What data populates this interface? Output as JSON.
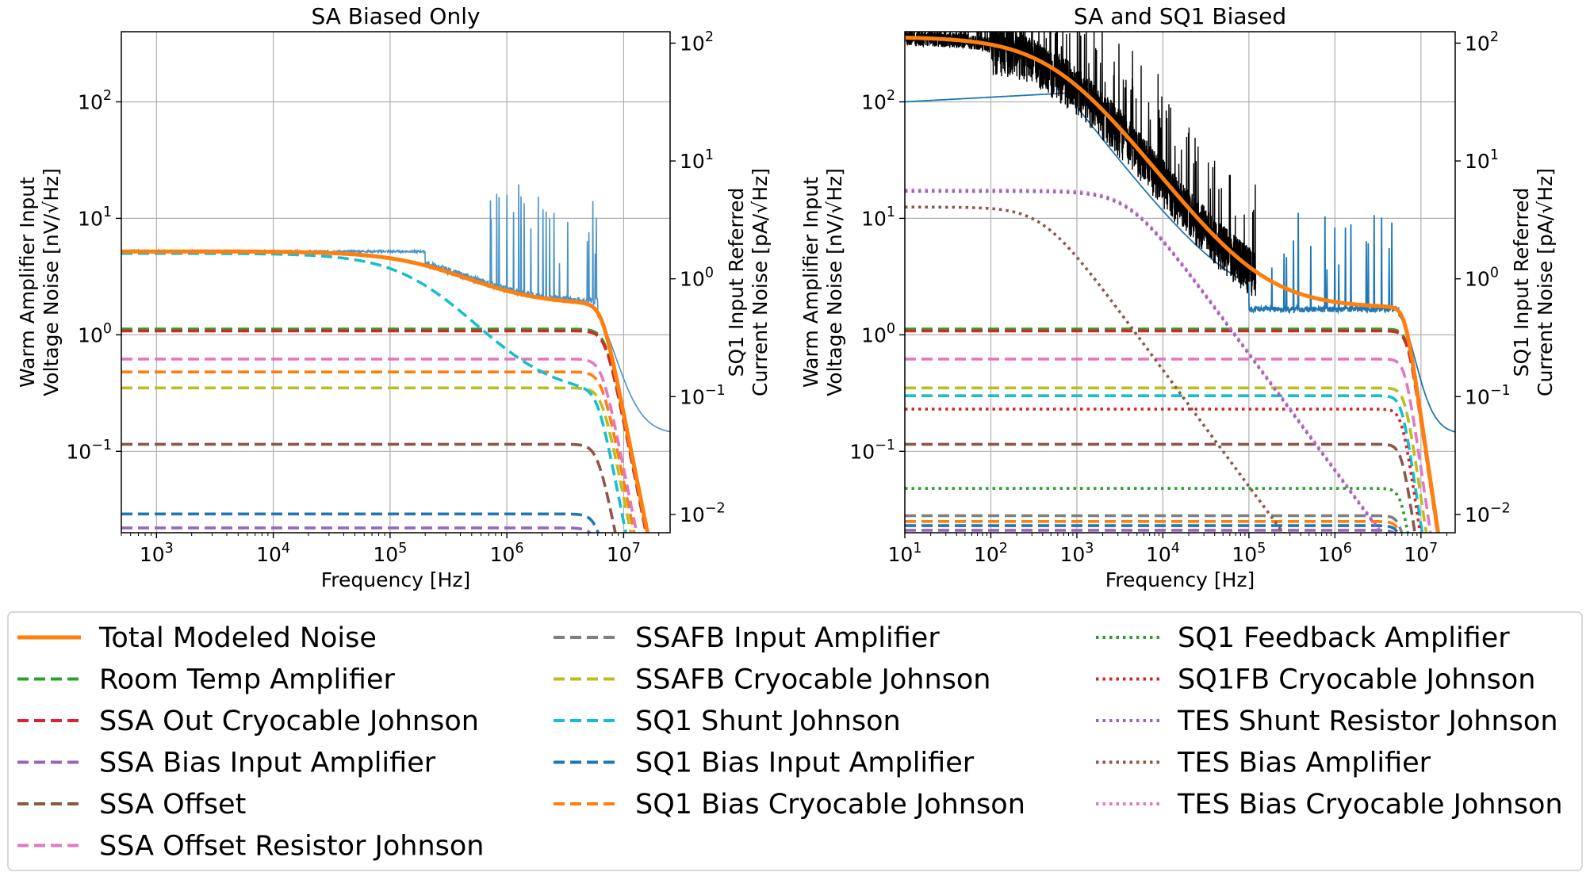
{
  "chart_data": [
    {
      "type": "line",
      "title": "SA Biased Only",
      "xlabel": "Frequency [Hz]",
      "ylabel_lines": [
        "Warm Amplifier Input",
        "Voltage Noise [nV/√Hz]"
      ],
      "ylabel2_lines": [
        "SQ1 Input Referred",
        "Current Noise [pA/√Hz]"
      ],
      "xscale": "log",
      "yscale": "log",
      "xlim": [
        500,
        25000000
      ],
      "ylim": [
        0.02,
        400
      ],
      "ylim2": [
        0.007,
        125
      ],
      "xticks": [
        {
          "v": 1000,
          "b": "10",
          "e": "3"
        },
        {
          "v": 10000,
          "b": "10",
          "e": "4"
        },
        {
          "v": 100000,
          "b": "10",
          "e": "5"
        },
        {
          "v": 1000000,
          "b": "10",
          "e": "6"
        },
        {
          "v": 10000000,
          "b": "10",
          "e": "7"
        }
      ],
      "yticks": [
        {
          "v": 0.1,
          "b": "10",
          "e": "−1"
        },
        {
          "v": 1,
          "b": "10",
          "e": "0"
        },
        {
          "v": 10,
          "b": "10",
          "e": "1"
        },
        {
          "v": 100,
          "b": "10",
          "e": "2"
        }
      ],
      "y2ticks": [
        {
          "v": 0.01,
          "b": "10",
          "e": "−2"
        },
        {
          "v": 0.1,
          "b": "10",
          "e": "−1"
        },
        {
          "v": 1,
          "b": "10",
          "e": "0"
        },
        {
          "v": 10,
          "b": "10",
          "e": "1"
        },
        {
          "v": 100,
          "b": "10",
          "e": "2"
        }
      ],
      "grid": true,
      "measured": {
        "color": "#4a93c6",
        "x_min": 500,
        "x_max": 25000000,
        "plateau": 5.2,
        "tail": 0.14
      },
      "total": {
        "color": "#ff7f0e",
        "plateau": 5.2,
        "knee": 300000,
        "floor": 1.8,
        "rolloff": 6500000
      },
      "components": [
        {
          "series": "Room Temp Amplifier",
          "value": 1.12,
          "rolloff": 7000000
        },
        {
          "series": "SSA Out Cryocable Johnson",
          "value": 1.08,
          "rolloff": 7000000
        },
        {
          "series": "SSA Offset Resistor Johnson",
          "value": 0.62,
          "rolloff": 6500000
        },
        {
          "series": "SQ1 Bias Cryocable Johnson",
          "value": 0.48,
          "rolloff": 6500000
        },
        {
          "series": "SSAFB Cryocable Johnson",
          "value": 0.35,
          "rolloff": 6500000
        },
        {
          "series": "SSA Offset",
          "value": 0.115,
          "rolloff": 6000000
        },
        {
          "series": "SQ1 Bias Input Amplifier",
          "value": 0.029,
          "rolloff": 6000000
        },
        {
          "series": "SSA Bias Input Amplifier",
          "value": 0.022,
          "rolloff": 6000000
        },
        {
          "series": "SQ1 Shunt Johnson",
          "value": 5.0,
          "corner": 200000,
          "floor": 0.3,
          "rolloff": 6000000
        }
      ]
    },
    {
      "type": "line",
      "title": "SA and SQ1 Biased",
      "xlabel": "Frequency [Hz]",
      "ylabel_lines": [
        "Warm Amplifier Input",
        "Voltage Noise [nV/√Hz]"
      ],
      "ylabel2_lines": [
        "SQ1 Input Referred",
        "Current Noise [pA/√Hz]"
      ],
      "xscale": "log",
      "yscale": "log",
      "xlim": [
        10,
        25000000
      ],
      "ylim": [
        0.02,
        400
      ],
      "ylim2": [
        0.007,
        125
      ],
      "xticks": [
        {
          "v": 10,
          "b": "10",
          "e": "1"
        },
        {
          "v": 100,
          "b": "10",
          "e": "2"
        },
        {
          "v": 1000,
          "b": "10",
          "e": "3"
        },
        {
          "v": 10000,
          "b": "10",
          "e": "4"
        },
        {
          "v": 100000,
          "b": "10",
          "e": "5"
        },
        {
          "v": 1000000,
          "b": "10",
          "e": "6"
        },
        {
          "v": 10000000,
          "b": "10",
          "e": "7"
        }
      ],
      "yticks": [
        {
          "v": 0.1,
          "b": "10",
          "e": "−1"
        },
        {
          "v": 1,
          "b": "10",
          "e": "0"
        },
        {
          "v": 10,
          "b": "10",
          "e": "1"
        },
        {
          "v": 100,
          "b": "10",
          "e": "2"
        }
      ],
      "y2ticks": [
        {
          "v": 0.01,
          "b": "10",
          "e": "−2"
        },
        {
          "v": 0.1,
          "b": "10",
          "e": "−1"
        },
        {
          "v": 1,
          "b": "10",
          "e": "0"
        },
        {
          "v": 10,
          "b": "10",
          "e": "1"
        },
        {
          "v": 100,
          "b": "10",
          "e": "2"
        }
      ],
      "grid": true,
      "measured_black": {
        "color": "#000000",
        "x_min": 10,
        "x_max": 120000,
        "plateau": 360,
        "corner": 600,
        "floor": 1.8
      },
      "measured_blue": {
        "color": "#1f77b4",
        "x_min": 10,
        "x_max": 25000000,
        "start": 100,
        "knee": 800,
        "floor": 1.6,
        "tail": 0.14
      },
      "total": {
        "color": "#ff7f0e",
        "plateau": 360,
        "corner": 600,
        "floor": 1.7,
        "rolloff": 6500000
      },
      "components": [
        {
          "series": "Room Temp Amplifier",
          "value": 1.12,
          "rolloff": 7000000
        },
        {
          "series": "SSA Out Cryocable Johnson",
          "value": 1.08,
          "rolloff": 7000000
        },
        {
          "series": "SSA Offset Resistor Johnson",
          "value": 0.62,
          "rolloff": 6500000
        },
        {
          "series": "SSAFB Cryocable Johnson",
          "value": 0.35,
          "rolloff": 6500000
        },
        {
          "series": "SQ1 Shunt Johnson",
          "value": 0.3,
          "rolloff": 6000000
        },
        {
          "series": "SQ1FB Cryocable Johnson",
          "value": 0.23,
          "rolloff": 6000000
        },
        {
          "series": "SSA Offset",
          "value": 0.115,
          "rolloff": 6000000
        },
        {
          "series": "SQ1 Feedback Amplifier",
          "value": 0.048,
          "rolloff": 6000000
        },
        {
          "series": "SSAFB Input Amplifier",
          "value": 0.028,
          "rolloff": 6000000
        },
        {
          "series": "SQ1 Bias Cryocable Johnson",
          "value": 0.025,
          "rolloff": 6000000
        },
        {
          "series": "SQ1 Bias Input Amplifier",
          "value": 0.023,
          "rolloff": 6000000
        },
        {
          "series": "SSA Bias Input Amplifier",
          "value": 0.021,
          "rolloff": 6000000
        },
        {
          "series": "TES Bias Cryocable Johnson",
          "value": 17.5,
          "corner": 4000,
          "slope": 1.0
        },
        {
          "series": "TES Shunt Resistor Johnson",
          "value": 17.0,
          "corner": 4000,
          "slope": 1.0
        },
        {
          "series": "TES Bias Amplifier",
          "value": 12.5,
          "corner": 400,
          "slope": 1.0
        }
      ]
    }
  ],
  "legend": {
    "placement": "bottom",
    "columns": [
      [
        {
          "label": "Total Modeled Noise",
          "color": "#ff7f0e",
          "style": "solid"
        },
        {
          "label": "Room Temp Amplifier",
          "color": "#2ca02c",
          "style": "dashed"
        },
        {
          "label": "SSA Out Cryocable Johnson",
          "color": "#d62728",
          "style": "dashed"
        },
        {
          "label": "SSA Bias Input Amplifier",
          "color": "#9467bd",
          "style": "dashed"
        },
        {
          "label": "SSA Offset",
          "color": "#8c564b",
          "style": "dashed"
        },
        {
          "label": "SSA Offset Resistor Johnson",
          "color": "#e377c2",
          "style": "dashed"
        }
      ],
      [
        {
          "label": "SSAFB Input Amplifier",
          "color": "#7f7f7f",
          "style": "dashed"
        },
        {
          "label": "SSAFB Cryocable Johnson",
          "color": "#bcbd22",
          "style": "dashed"
        },
        {
          "label": "SQ1 Shunt Johnson",
          "color": "#17becf",
          "style": "dashed"
        },
        {
          "label": "SQ1 Bias Input Amplifier",
          "color": "#1f77b4",
          "style": "dashed"
        },
        {
          "label": "SQ1 Bias Cryocable Johnson",
          "color": "#ff7f0e",
          "style": "dashed"
        }
      ],
      [
        {
          "label": "SQ1 Feedback Amplifier",
          "color": "#2ca02c",
          "style": "dotted"
        },
        {
          "label": "SQ1FB Cryocable Johnson",
          "color": "#d62728",
          "style": "dotted"
        },
        {
          "label": "TES Shunt Resistor Johnson",
          "color": "#9467bd",
          "style": "dotted"
        },
        {
          "label": "TES Bias Amplifier",
          "color": "#8c564b",
          "style": "dotted"
        },
        {
          "label": "TES Bias Cryocable Johnson",
          "color": "#e377c2",
          "style": "dotted"
        }
      ]
    ]
  }
}
